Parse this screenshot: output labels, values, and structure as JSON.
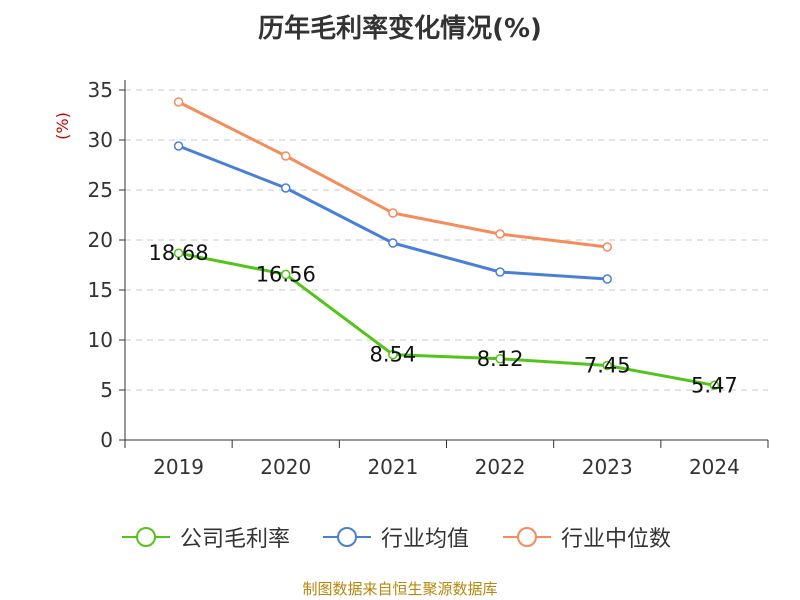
{
  "chart_data": {
    "type": "line",
    "title": "历年毛利率变化情况(%)",
    "ylabel": "(%)",
    "categories": [
      "2019",
      "2020",
      "2021",
      "2022",
      "2023",
      "2024"
    ],
    "ylim": [
      0,
      35
    ],
    "yticks": [
      0,
      5,
      10,
      15,
      20,
      25,
      30,
      35
    ],
    "grid": true,
    "legend_position": "bottom",
    "series": [
      {
        "name": "公司毛利率",
        "color": "#52c41a",
        "values": [
          18.68,
          16.56,
          8.54,
          8.12,
          7.45,
          5.47
        ],
        "labels": [
          "18.68",
          "16.56",
          "8.54",
          "8.12",
          "7.45",
          "5.47"
        ]
      },
      {
        "name": "行业均值",
        "color": "#4a7fd8",
        "values": [
          29.4,
          25.2,
          19.7,
          16.8,
          16.1,
          null
        ]
      },
      {
        "name": "行业中位数",
        "color": "#f58c5b",
        "values": [
          33.8,
          28.4,
          22.7,
          20.6,
          19.3,
          null
        ]
      }
    ]
  },
  "source": "制图数据来自恒生聚源数据库"
}
